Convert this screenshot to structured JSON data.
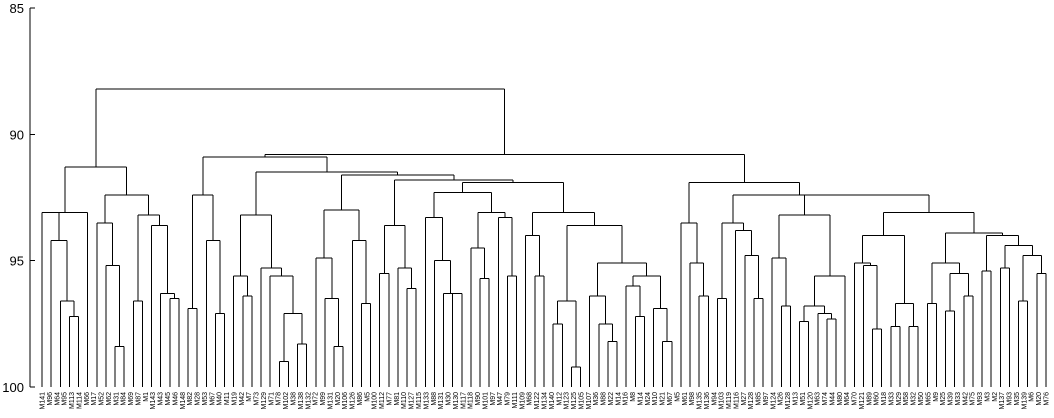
{
  "chart_data": {
    "type": "dendrogram",
    "y_axis": {
      "ticks": [
        85,
        90,
        95,
        100
      ],
      "range": [
        85,
        100
      ]
    },
    "leaves": [
      "M141",
      "M96",
      "M64",
      "M95",
      "M113",
      "M114",
      "M66",
      "M17",
      "M52",
      "M62",
      "M31",
      "M84",
      "M69",
      "M87",
      "M1",
      "M143",
      "M43",
      "M45",
      "M46",
      "M148",
      "M82",
      "M28",
      "M53",
      "M67",
      "M40",
      "M11",
      "M19",
      "M42",
      "M7",
      "M73",
      "M129",
      "M71",
      "M78",
      "M102",
      "M38",
      "M138",
      "M132",
      "M72",
      "M99",
      "M131",
      "M20",
      "M106",
      "M126",
      "M86",
      "M5",
      "M100",
      "M112",
      "M77",
      "M81",
      "M110",
      "M127",
      "M115",
      "M133",
      "M88",
      "M131",
      "M30",
      "M130",
      "M117",
      "M118",
      "M90",
      "M101",
      "M97",
      "M47",
      "M79",
      "M111",
      "M109",
      "M68",
      "M122",
      "M134",
      "M140",
      "M12",
      "M123",
      "M125",
      "M105",
      "M107",
      "M36",
      "M88",
      "M22",
      "M14",
      "M16",
      "M8",
      "M14",
      "M24",
      "M10",
      "M21",
      "M67",
      "M5",
      "M61",
      "M98",
      "M135",
      "M136",
      "M94",
      "M103",
      "M119",
      "M116",
      "M27",
      "M128",
      "M85",
      "M97",
      "M124",
      "M26",
      "M128",
      "M13",
      "M51",
      "M120",
      "M63",
      "M74",
      "M44",
      "M80",
      "M64",
      "M70",
      "M121",
      "M89",
      "M60",
      "M18",
      "M33",
      "M29",
      "M58",
      "M32",
      "M50",
      "M65",
      "M9",
      "M25",
      "M39",
      "M33",
      "M42",
      "M75",
      "M93",
      "M3",
      "M2",
      "M137",
      "M93",
      "M35",
      "M139",
      "M6",
      "M20",
      "M76"
    ],
    "merges": [
      {
        "children": [
          [
            0,
            94.6
          ],
          [
            [
              1,
              97.4
            ],
            [
              [
                2,
                96.6
              ],
              [
                [
                  3,
                  97.2
                ],
                [
                  4,
                  100
                ]
              ],
              96.6
            ],
            94.2
          ],
          93.1
        ],
        "height": 91.3
      },
      "see script: tree defined by heights below"
    ]
  }
}
